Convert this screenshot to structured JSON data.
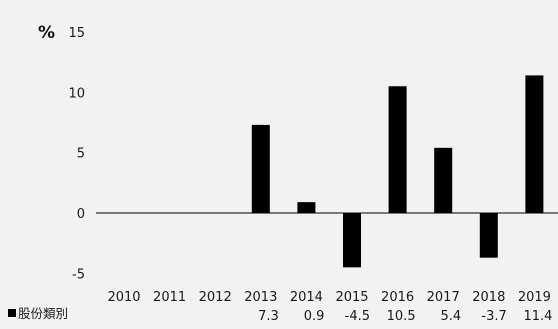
{
  "chart_data": {
    "type": "bar",
    "unit_label": "%",
    "categories": [
      "2010",
      "2011",
      "2012",
      "2013",
      "2014",
      "2015",
      "2016",
      "2017",
      "2018",
      "2019"
    ],
    "series": [
      {
        "name": "股份類別",
        "values": [
          null,
          null,
          null,
          7.3,
          0.9,
          -4.5,
          10.5,
          5.4,
          -3.7,
          11.4
        ],
        "labels": [
          "",
          "",
          "",
          "7.3",
          "0.9",
          "-4.5",
          "10.5",
          "5.4",
          "-3.7",
          "11.4"
        ],
        "color": "#000000"
      }
    ],
    "yticks": [
      15,
      10,
      5,
      0,
      -5
    ],
    "ylim": [
      -5.5,
      15
    ],
    "grid": false,
    "legend_placement": "bottom-left (data table row)"
  }
}
